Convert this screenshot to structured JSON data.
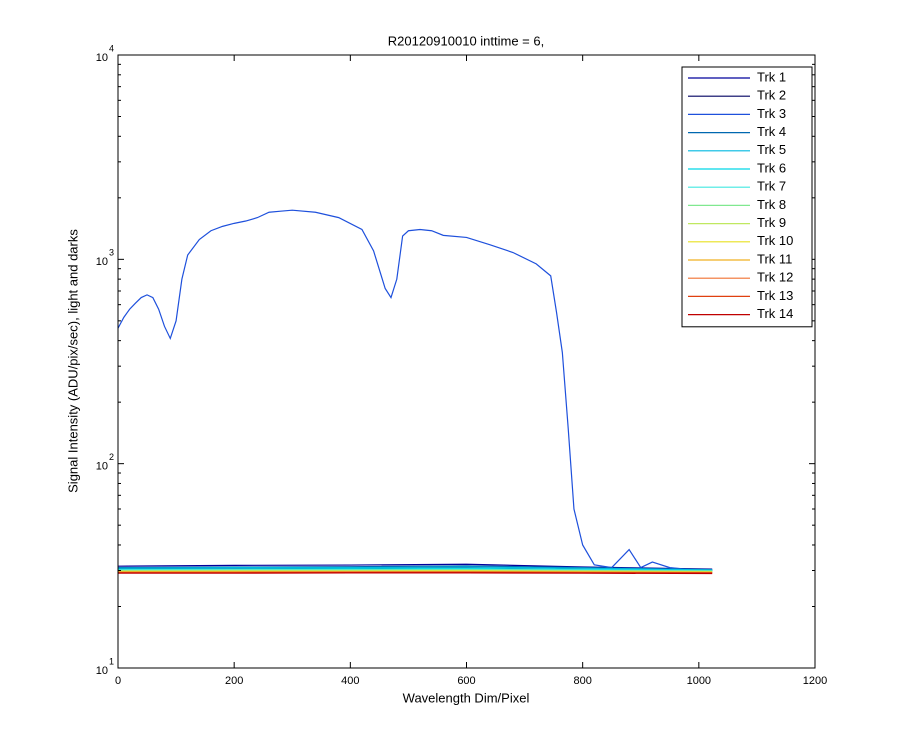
{
  "chart_data": {
    "type": "line",
    "title": "R20120910010 inttime = 6,",
    "xlabel": "Wavelength Dim/Pixel",
    "ylabel": "Signal Intensity (ADU/pix/sec), light and darks",
    "xlim": [
      0,
      1200
    ],
    "xticks": [
      0,
      200,
      400,
      600,
      800,
      1000,
      1200
    ],
    "ylim": [
      10,
      10000
    ],
    "yscale": "log",
    "yticks": [
      {
        "value": 10,
        "label": "10",
        "exponent": "1"
      },
      {
        "value": 100,
        "label": "10",
        "exponent": "2"
      },
      {
        "value": 1000,
        "label": "10",
        "exponent": "3"
      },
      {
        "value": 10000,
        "label": "10",
        "exponent": "4"
      }
    ],
    "legend": "upper right",
    "series": [
      {
        "name": "Trk 1",
        "color": "#00009c",
        "x": [
          0,
          200,
          400,
          600,
          800,
          1023
        ],
        "values": [
          31.5,
          31.8,
          31.9,
          32.2,
          31.2,
          30.5
        ]
      },
      {
        "name": "Trk 2",
        "color": "#000060",
        "x": [
          0,
          200,
          400,
          600,
          800,
          1023
        ],
        "values": [
          30.5,
          30.6,
          30.7,
          30.8,
          30.4,
          30
        ]
      },
      {
        "name": "Trk 3",
        "color": "#1e50dc",
        "x": [
          0,
          10,
          20,
          30,
          40,
          50,
          60,
          70,
          80,
          90,
          100,
          110,
          120,
          140,
          160,
          180,
          200,
          220,
          240,
          260,
          280,
          300,
          340,
          380,
          420,
          440,
          460,
          470,
          480,
          490,
          500,
          520,
          540,
          560,
          600,
          640,
          680,
          720,
          745,
          755,
          765,
          775,
          785,
          800,
          820,
          850,
          880,
          900,
          920,
          950,
          1000,
          1023
        ],
        "values": [
          460,
          520,
          570,
          610,
          650,
          670,
          650,
          570,
          470,
          410,
          500,
          800,
          1050,
          1250,
          1380,
          1450,
          1500,
          1540,
          1600,
          1700,
          1720,
          1740,
          1700,
          1600,
          1400,
          1100,
          720,
          650,
          800,
          1300,
          1380,
          1400,
          1380,
          1310,
          1280,
          1180,
          1080,
          950,
          830,
          550,
          350,
          150,
          60,
          40,
          32,
          31,
          38,
          31,
          33,
          31,
          30,
          30
        ]
      },
      {
        "name": "Trk 4",
        "color": "#0068b0",
        "x": [
          0,
          200,
          400,
          600,
          800,
          1023
        ],
        "values": [
          31,
          31.2,
          31.3,
          31.6,
          31,
          30.3
        ]
      },
      {
        "name": "Trk 5",
        "color": "#00b8e0",
        "x": [
          0,
          200,
          400,
          600,
          800,
          1023
        ],
        "values": [
          30.8,
          31,
          31,
          31.2,
          30.8,
          30.2
        ]
      },
      {
        "name": "Trk 6",
        "color": "#00d8e8",
        "x": [
          0,
          200,
          400,
          600,
          800,
          1023
        ],
        "values": [
          30.4,
          30.5,
          30.6,
          30.7,
          30.4,
          30
        ]
      },
      {
        "name": "Trk 7",
        "color": "#40e8e0",
        "x": [
          0,
          200,
          400,
          600,
          800,
          1023
        ],
        "values": [
          30.2,
          30.3,
          30.3,
          30.4,
          30.2,
          29.9
        ]
      },
      {
        "name": "Trk 8",
        "color": "#80e890",
        "x": [
          0,
          200,
          400,
          600,
          800,
          1023
        ],
        "values": [
          30,
          30.1,
          30.1,
          30.2,
          30,
          29.8
        ]
      },
      {
        "name": "Trk 9",
        "color": "#c0e860",
        "x": [
          0,
          200,
          400,
          600,
          800,
          1023
        ],
        "values": [
          29.8,
          29.9,
          29.9,
          30,
          29.8,
          29.6
        ]
      },
      {
        "name": "Trk 10",
        "color": "#e8e020",
        "x": [
          0,
          200,
          400,
          600,
          800,
          1023
        ],
        "values": [
          29.6,
          29.7,
          29.7,
          29.8,
          29.6,
          29.5
        ]
      },
      {
        "name": "Trk 11",
        "color": "#f0b020",
        "x": [
          0,
          200,
          400,
          600,
          800,
          1023
        ],
        "values": [
          29.5,
          29.6,
          29.6,
          29.6,
          29.5,
          29.4
        ]
      },
      {
        "name": "Trk 12",
        "color": "#f07030",
        "x": [
          0,
          200,
          400,
          600,
          800,
          1023
        ],
        "values": [
          29.4,
          29.4,
          29.5,
          29.5,
          29.4,
          29.3
        ]
      },
      {
        "name": "Trk 13",
        "color": "#e04010",
        "x": [
          0,
          200,
          400,
          600,
          800,
          1023
        ],
        "values": [
          29.3,
          29.3,
          29.3,
          29.4,
          29.3,
          29.2
        ]
      },
      {
        "name": "Trk 14",
        "color": "#c00000",
        "x": [
          0,
          200,
          400,
          600,
          800,
          1023
        ],
        "values": [
          29.1,
          29.1,
          29.2,
          29.2,
          29.1,
          29
        ]
      }
    ]
  }
}
